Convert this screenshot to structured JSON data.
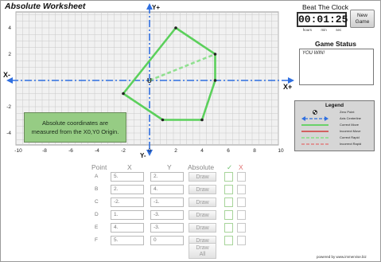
{
  "app": {
    "title": "Absolute Worksheet"
  },
  "clock": {
    "label": "Beat The Clock",
    "time": "00:01:25",
    "units": [
      "hours",
      "min",
      "sec"
    ]
  },
  "new_game": {
    "line1": "New",
    "line2": "Game"
  },
  "status": {
    "label": "Game Status",
    "message": "YOU WIN!"
  },
  "legend": {
    "title": "Legend",
    "items": [
      {
        "label": "Zero Point",
        "swatch": "zero-point",
        "color": "#333333"
      },
      {
        "label": "Axis Centerline",
        "swatch": "axis-arrow",
        "color": "#2f6fe0"
      },
      {
        "label": "Correct Move",
        "swatch": "solid",
        "color": "#5bd05b"
      },
      {
        "label": "Incorrect Move",
        "swatch": "solid",
        "color": "#d05050"
      },
      {
        "label": "Correct Rapid",
        "swatch": "dashed",
        "color": "#8fe08f"
      },
      {
        "label": "Incorrect Rapid",
        "swatch": "dashed",
        "color": "#e08a8a"
      }
    ]
  },
  "note": {
    "line1": "Absolute coordinates are",
    "line2": "measured from the X0,Y0 Origin."
  },
  "graph": {
    "x_axis": {
      "min": -10,
      "max": 10,
      "ticks": [
        -10,
        -8,
        -6,
        -4,
        -2,
        0,
        2,
        4,
        6,
        8,
        10
      ]
    },
    "y_axis": {
      "min": -5,
      "max": 5,
      "ticks": [
        -4,
        -2,
        2,
        4
      ]
    },
    "axis_labels": {
      "x_minus": "X-",
      "x_plus": "X+",
      "y_plus": "Y+",
      "y_minus": "Y-"
    },
    "origin_label": "U",
    "start": [
      0,
      0
    ],
    "polygon": [
      [
        2,
        4
      ],
      [
        5,
        2
      ],
      [
        5,
        0
      ],
      [
        4,
        -3
      ],
      [
        1,
        -3
      ],
      [
        -2,
        -1
      ],
      [
        2,
        4
      ]
    ],
    "rapid": [
      [
        0,
        0
      ],
      [
        5,
        2
      ]
    ],
    "colors": {
      "grid": "#c9c9c9",
      "axis": "#2f6fe0",
      "move": "#5bd05b",
      "rapid": "#8fe08f",
      "point": "#222222"
    }
  },
  "table": {
    "headers": {
      "point": "Point",
      "x": "X",
      "y": "Y",
      "absolute": "Absolute",
      "check": "✓",
      "cross": "X"
    },
    "draw_label": "Draw",
    "rows": [
      {
        "point": "A",
        "x": "5.",
        "y": "2."
      },
      {
        "point": "B",
        "x": "2.",
        "y": "4."
      },
      {
        "point": "C",
        "x": "-2.",
        "y": "-1."
      },
      {
        "point": "D",
        "x": "1.",
        "y": "-3."
      },
      {
        "point": "E",
        "x": "4.",
        "y": "-3."
      },
      {
        "point": "F",
        "x": "5.",
        "y": "0"
      }
    ],
    "draw_all": {
      "line1": "Draw",
      "line2": "All"
    }
  },
  "footer": {
    "powered_by": "powered by www.immervise.biz"
  }
}
